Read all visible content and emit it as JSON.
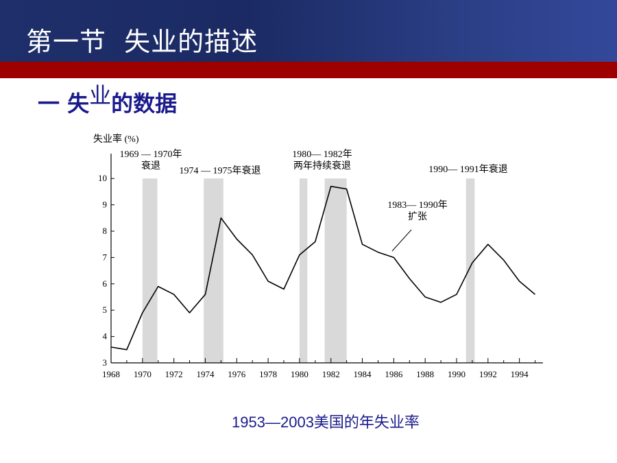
{
  "header": {
    "title": "第一节  失业的描述"
  },
  "subtitle": {
    "prefix": "一 失",
    "lifted": "业",
    "suffix": "的数据"
  },
  "caption": {
    "text": "1953—2003美国的年失业率"
  },
  "colors": {
    "header_bg": "#1f2f6b",
    "band": "#9e0000",
    "text_blue": "#1a1a8c",
    "recession": "#d9d9d9"
  },
  "chart_data": {
    "type": "line",
    "ylabel": "失业率 (%)",
    "xlim": [
      1968,
      1995.5
    ],
    "ylim": [
      3,
      10.5
    ],
    "xticks": [
      1968,
      1970,
      1972,
      1974,
      1976,
      1978,
      1980,
      1982,
      1984,
      1986,
      1988,
      1990,
      1992,
      1994
    ],
    "yticks": [
      3,
      4,
      5,
      6,
      7,
      8,
      9,
      10
    ],
    "series": [
      {
        "x": [
          1968,
          1969,
          1970,
          1971,
          1972,
          1973,
          1974,
          1975,
          1976,
          1977,
          1978,
          1979,
          1980,
          1981,
          1982,
          1983,
          1984,
          1985,
          1986,
          1987,
          1988,
          1989,
          1990,
          1991,
          1992,
          1993,
          1994,
          1995
        ],
        "y": [
          3.6,
          3.5,
          4.9,
          5.9,
          5.6,
          4.9,
          5.6,
          8.5,
          7.7,
          7.1,
          6.1,
          5.8,
          7.1,
          7.6,
          9.7,
          9.6,
          7.5,
          7.2,
          7.0,
          6.2,
          5.5,
          5.3,
          5.6,
          6.8,
          7.5,
          6.9,
          6.1,
          5.6
        ]
      }
    ],
    "recessions": [
      {
        "start": 1970.0,
        "end": 1970.95
      },
      {
        "start": 1973.9,
        "end": 1975.15
      },
      {
        "start": 1980.0,
        "end": 1980.5
      },
      {
        "start": 1981.6,
        "end": 1983.0
      },
      {
        "start": 1990.6,
        "end": 1991.15
      }
    ],
    "annotations": [
      {
        "lines": [
          "1969 — 1970年",
          "衰退"
        ]
      },
      {
        "lines": [
          "1974 — 1975年衰退"
        ]
      },
      {
        "lines": [
          "1980— 1982年",
          "两年持续衰退"
        ]
      },
      {
        "lines": [
          "1990— 1991年衰退"
        ]
      },
      {
        "lines": [
          "1983— 1990年",
          "扩张"
        ]
      }
    ]
  }
}
